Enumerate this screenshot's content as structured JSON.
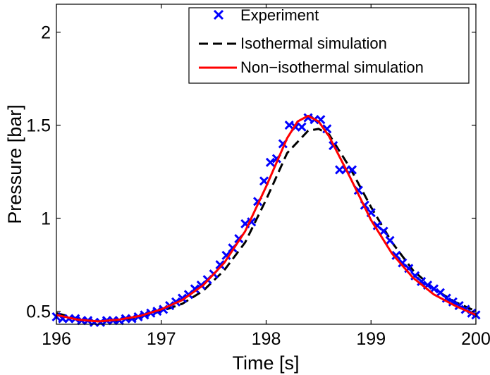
{
  "chart_data": {
    "type": "line",
    "title": "",
    "xlabel": "Time [s]",
    "ylabel": "Pressure [bar]",
    "xlim": [
      196,
      200
    ],
    "ylim": [
      0.43,
      2.15
    ],
    "xticks": [
      196,
      197,
      198,
      199,
      200
    ],
    "yticks": [
      0.5,
      1,
      1.5,
      2
    ],
    "ytick_labels": [
      "0.5",
      "1",
      "1.5",
      "2"
    ],
    "grid": false,
    "legend_position": "top-right",
    "series": [
      {
        "name": "Experiment",
        "style": "marker-x",
        "color": "#0000ff",
        "x": [
          196.0,
          196.06,
          196.12,
          196.18,
          196.24,
          196.3,
          196.36,
          196.42,
          196.48,
          196.54,
          196.6,
          196.66,
          196.72,
          196.78,
          196.84,
          196.9,
          196.96,
          197.02,
          197.08,
          197.14,
          197.2,
          197.26,
          197.32,
          197.38,
          197.44,
          197.5,
          197.56,
          197.62,
          197.68,
          197.74,
          197.8,
          197.86,
          197.92,
          197.98,
          198.04,
          198.1,
          198.16,
          198.22,
          198.28,
          198.34,
          198.4,
          198.46,
          198.52,
          198.58,
          198.64,
          198.7,
          198.76,
          198.82,
          198.88,
          198.94,
          199.0,
          199.06,
          199.12,
          199.18,
          199.24,
          199.3,
          199.36,
          199.42,
          199.48,
          199.54,
          199.6,
          199.66,
          199.72,
          199.78,
          199.84,
          199.9,
          199.96,
          200.0
        ],
        "y": [
          0.47,
          0.46,
          0.46,
          0.46,
          0.45,
          0.45,
          0.44,
          0.44,
          0.45,
          0.45,
          0.45,
          0.46,
          0.46,
          0.47,
          0.48,
          0.49,
          0.5,
          0.51,
          0.53,
          0.55,
          0.57,
          0.59,
          0.62,
          0.64,
          0.67,
          0.7,
          0.75,
          0.8,
          0.84,
          0.89,
          0.97,
          0.98,
          1.09,
          1.2,
          1.3,
          1.32,
          1.4,
          1.5,
          1.49,
          1.49,
          1.54,
          1.53,
          1.53,
          1.48,
          1.39,
          1.26,
          1.26,
          1.26,
          1.15,
          1.07,
          1.03,
          0.96,
          0.93,
          0.88,
          0.8,
          0.76,
          0.73,
          0.69,
          0.66,
          0.64,
          0.62,
          0.6,
          0.57,
          0.55,
          0.53,
          0.51,
          0.49,
          0.48
        ]
      },
      {
        "name": "Isothermal simulation",
        "style": "dashed",
        "color": "#000000",
        "x": [
          196.0,
          196.2,
          196.4,
          196.6,
          196.8,
          197.0,
          197.2,
          197.4,
          197.6,
          197.8,
          198.0,
          198.2,
          198.4,
          198.5,
          198.6,
          198.8,
          199.0,
          199.2,
          199.4,
          199.6,
          199.8,
          200.0
        ],
        "y": [
          0.49,
          0.46,
          0.445,
          0.45,
          0.47,
          0.5,
          0.54,
          0.61,
          0.72,
          0.87,
          1.1,
          1.35,
          1.47,
          1.48,
          1.45,
          1.27,
          1.06,
          0.87,
          0.72,
          0.62,
          0.55,
          0.5
        ]
      },
      {
        "name": "Non−isothermal simulation",
        "style": "solid",
        "color": "#ff0000",
        "x": [
          196.0,
          196.2,
          196.4,
          196.6,
          196.8,
          197.0,
          197.2,
          197.4,
          197.6,
          197.8,
          198.0,
          198.2,
          198.3,
          198.4,
          198.5,
          198.6,
          198.8,
          199.0,
          199.2,
          199.4,
          199.6,
          199.8,
          200.0
        ],
        "y": [
          0.48,
          0.455,
          0.445,
          0.455,
          0.475,
          0.51,
          0.56,
          0.64,
          0.76,
          0.93,
          1.17,
          1.43,
          1.52,
          1.55,
          1.52,
          1.44,
          1.22,
          0.99,
          0.81,
          0.68,
          0.59,
          0.53,
          0.48
        ]
      }
    ]
  }
}
